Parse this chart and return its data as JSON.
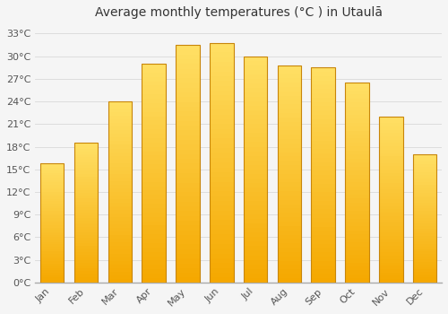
{
  "title": "Average monthly temperatures (°C ) in Utaulā",
  "months": [
    "Jan",
    "Feb",
    "Mar",
    "Apr",
    "May",
    "Jun",
    "Jul",
    "Aug",
    "Sep",
    "Oct",
    "Nov",
    "Dec"
  ],
  "values": [
    15.8,
    18.5,
    24.0,
    29.0,
    31.5,
    31.8,
    30.0,
    28.8,
    28.5,
    26.5,
    22.0,
    17.0
  ],
  "bar_color_bottom": "#F5A800",
  "bar_color_top": "#FFE066",
  "bar_edge_color": "#C8860A",
  "ylim": [
    0,
    34
  ],
  "yticks": [
    0,
    3,
    6,
    9,
    12,
    15,
    18,
    21,
    24,
    27,
    30,
    33
  ],
  "grid_color": "#dddddd",
  "background_color": "#f5f5f5",
  "plot_bg_color": "#f5f5f5",
  "title_fontsize": 10,
  "tick_fontsize": 8,
  "figsize": [
    5.0,
    3.5
  ],
  "dpi": 100
}
